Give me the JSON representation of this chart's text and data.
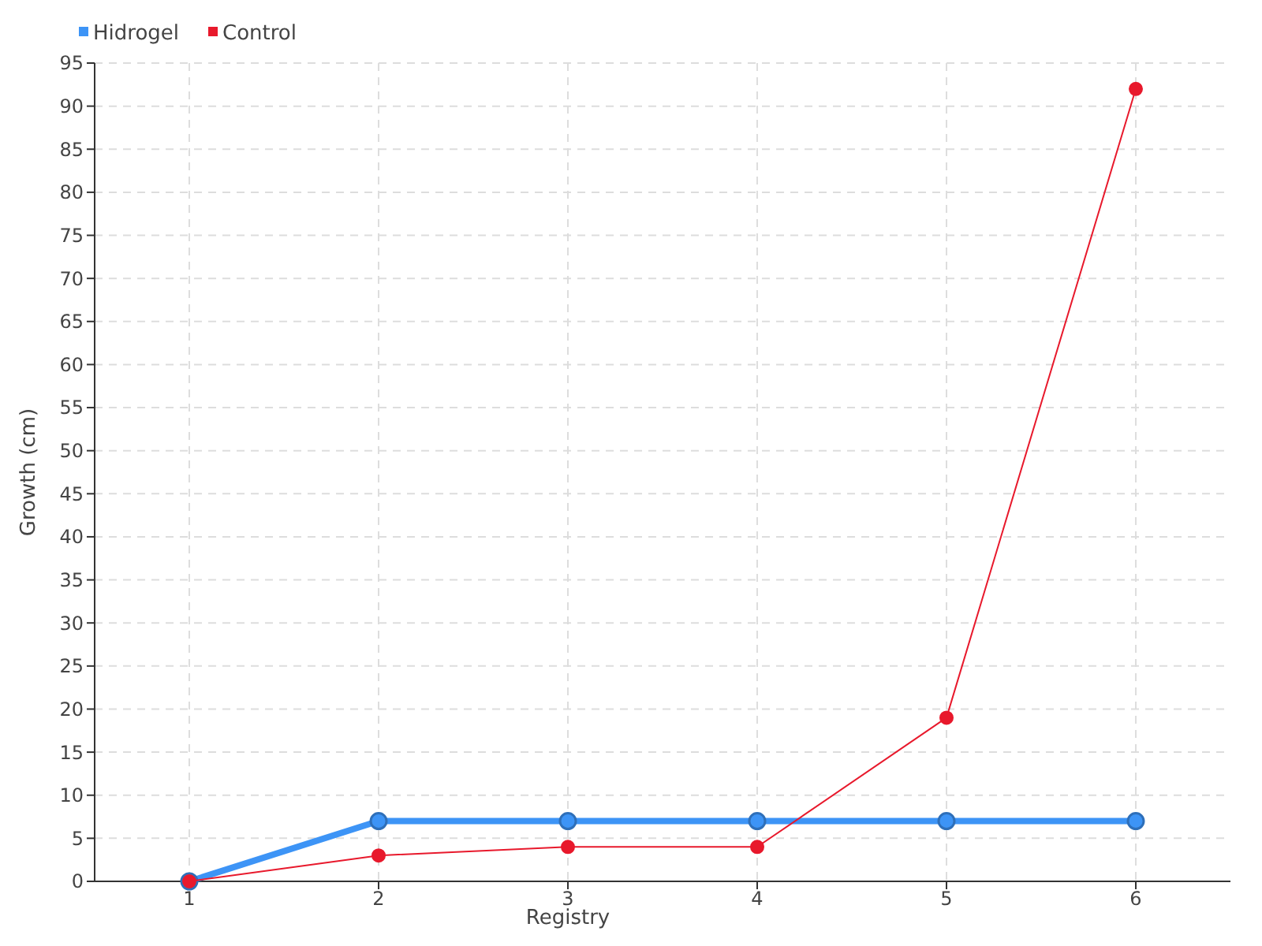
{
  "chart_data": {
    "type": "line",
    "xlabel": "Registry",
    "ylabel": "Growth (cm)",
    "x": [
      1,
      2,
      3,
      4,
      5,
      6
    ],
    "xlim": [
      0.5,
      6.5
    ],
    "xticks": [
      1,
      2,
      3,
      4,
      5,
      6
    ],
    "ylim": [
      0,
      95
    ],
    "yticks": [
      0,
      5,
      10,
      15,
      20,
      25,
      30,
      35,
      40,
      45,
      50,
      55,
      60,
      65,
      70,
      75,
      80,
      85,
      90,
      95
    ],
    "grid": true,
    "legend": "top left",
    "marker": "circle",
    "line_style": "solid",
    "series": [
      {
        "name": "Hidrogel",
        "color": "#3d94f6",
        "values": [
          0,
          7,
          7,
          7,
          7,
          7
        ]
      },
      {
        "name": "Control",
        "color": "#e8192c",
        "values": [
          0,
          3,
          4,
          4,
          19,
          92
        ]
      }
    ]
  }
}
